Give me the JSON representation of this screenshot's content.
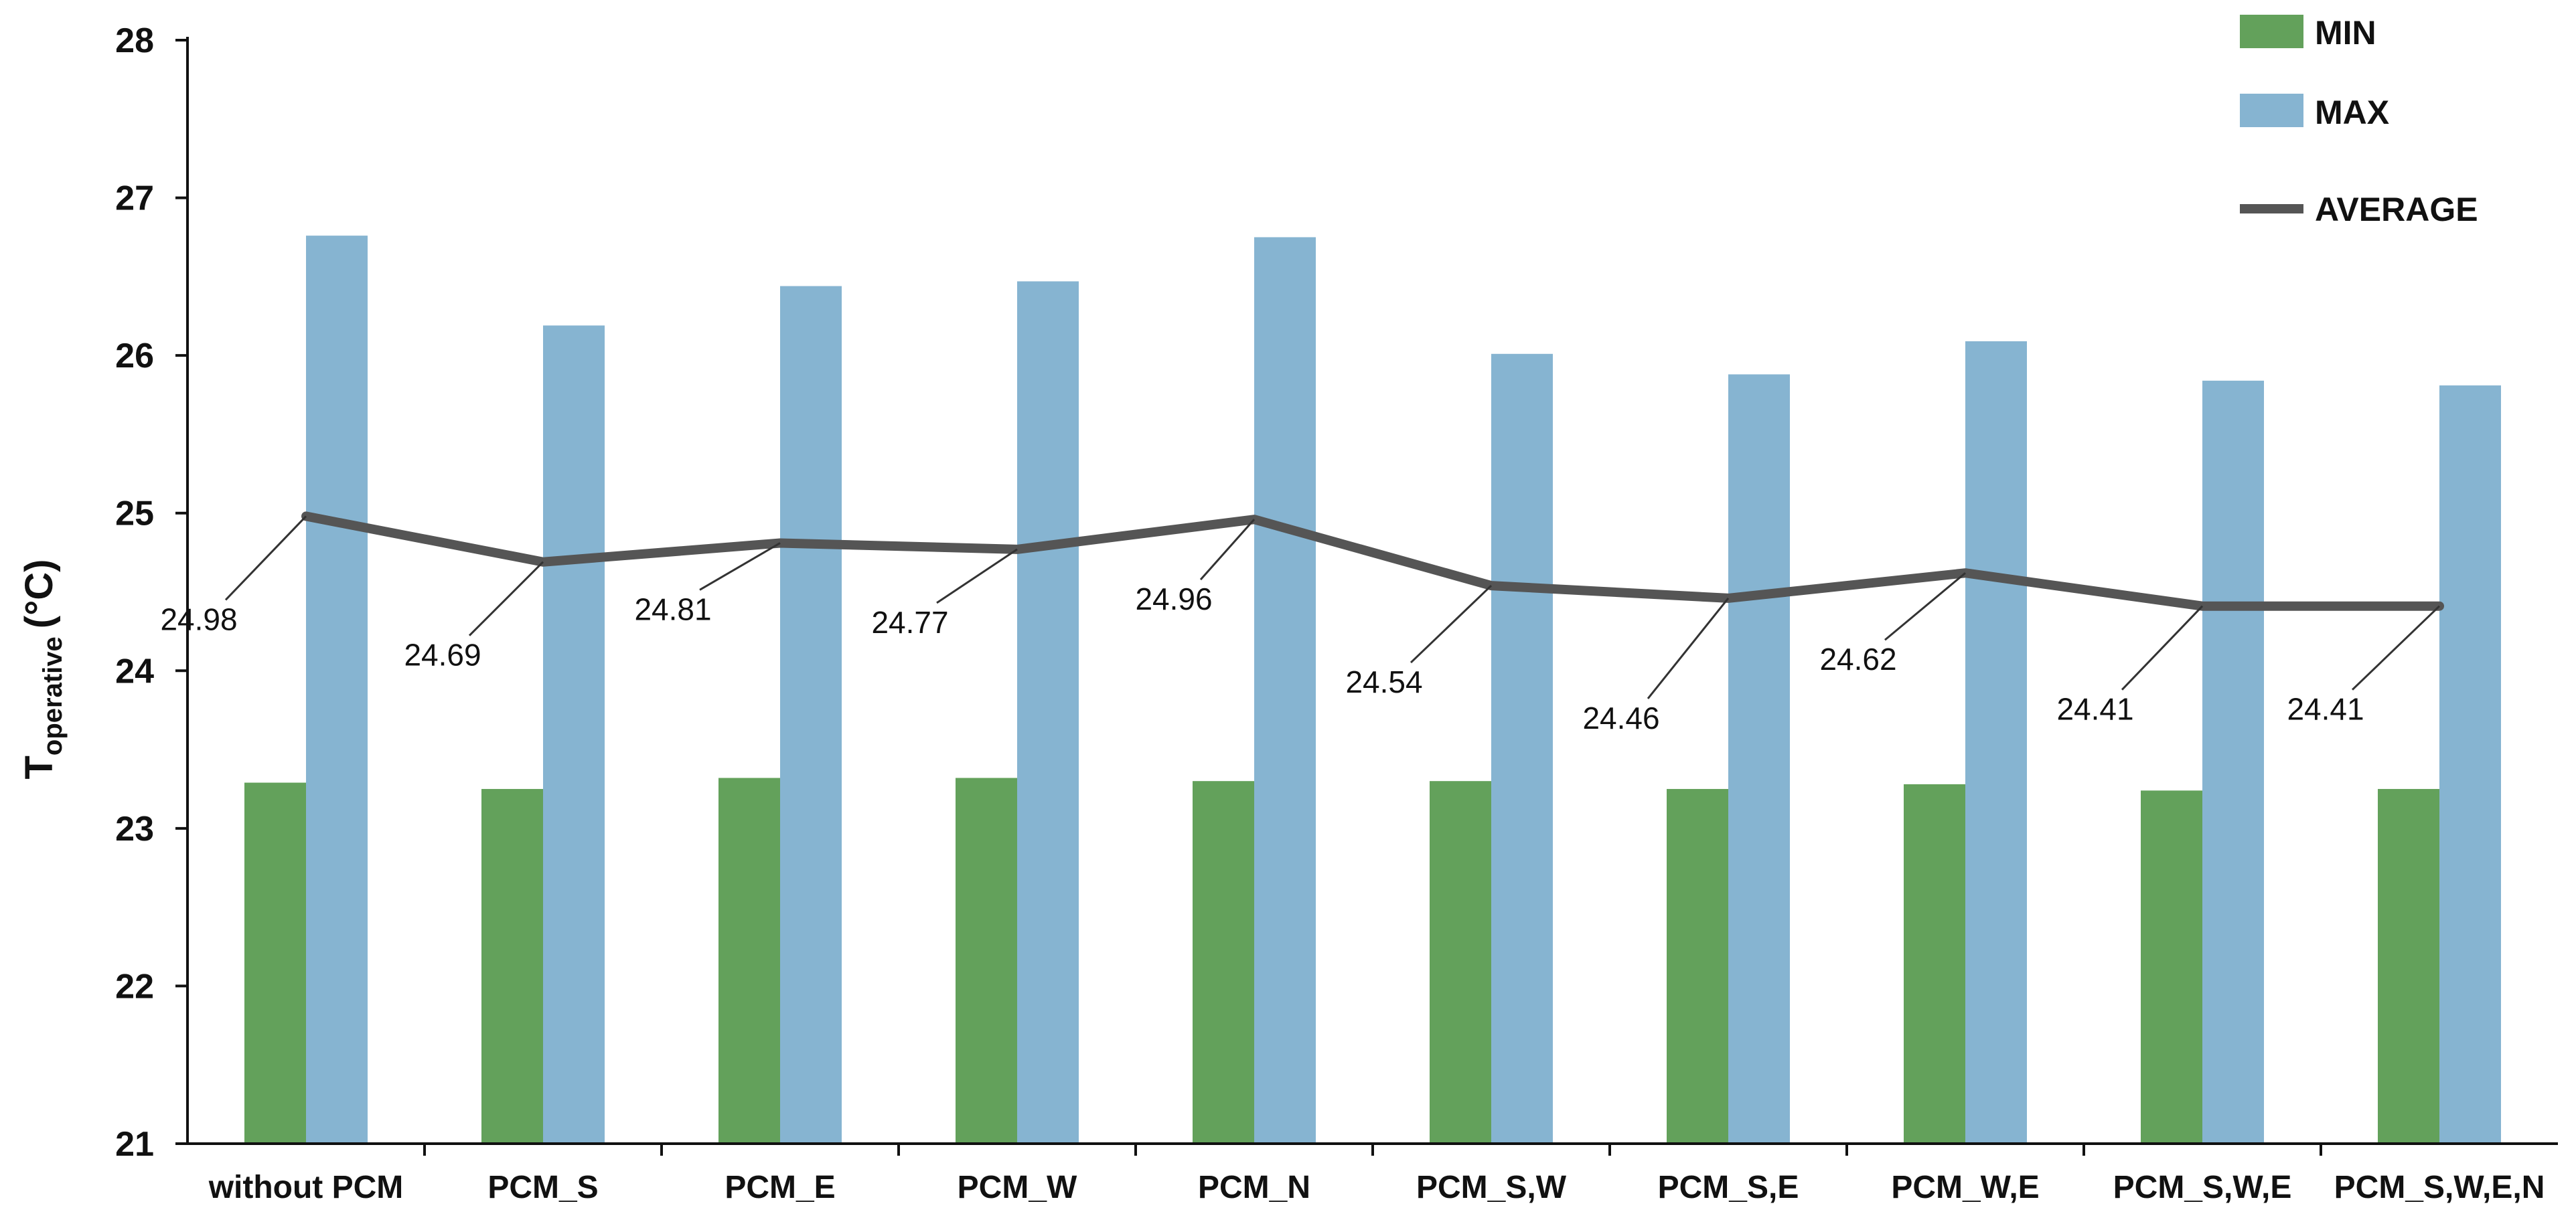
{
  "chart_data": {
    "type": "bar",
    "categories": [
      "without PCM",
      "PCM_S",
      "PCM_E",
      "PCM_W",
      "PCM_N",
      "PCM_S,W",
      "PCM_S,E",
      "PCM_W,E",
      "PCM_S,W,E",
      "PCM_S,W,E,N"
    ],
    "series": [
      {
        "name": "MIN",
        "type": "bar",
        "color": "#63A15B",
        "values": [
          23.29,
          23.25,
          23.32,
          23.32,
          23.3,
          23.3,
          23.25,
          23.28,
          23.24,
          23.25
        ]
      },
      {
        "name": "MAX",
        "type": "bar",
        "color": "#86B4D1",
        "values": [
          26.76,
          26.19,
          26.44,
          26.47,
          26.75,
          26.01,
          25.88,
          26.09,
          25.84,
          25.81
        ]
      },
      {
        "name": "AVERAGE",
        "type": "line",
        "color": "#555555",
        "values": [
          24.98,
          24.69,
          24.81,
          24.77,
          24.96,
          24.54,
          24.46,
          24.62,
          24.41,
          24.41
        ],
        "labels": [
          "24.98",
          "24.69",
          "24.81",
          "24.77",
          "24.96",
          "24.54",
          "24.46",
          "24.62",
          "24.41",
          "24.41"
        ]
      }
    ],
    "ylabel": "T",
    "ylabel_subscript": "operative",
    "ylabel_unit": "(°C)",
    "ylim": [
      21,
      28
    ],
    "yticks": [
      "21",
      "22",
      "23",
      "24",
      "25",
      "26",
      "27",
      "28"
    ],
    "grid": false,
    "legend": "top-right"
  }
}
